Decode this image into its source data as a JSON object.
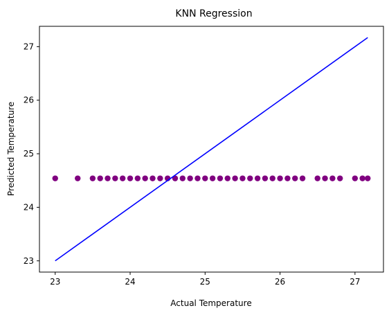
{
  "chart_data": {
    "type": "scatter",
    "title": "KNN Regression",
    "xlabel": "Actual Temperature",
    "ylabel": "Predicted Temperature",
    "xlim": [
      22.79,
      27.38
    ],
    "ylim": [
      22.79,
      27.38
    ],
    "xticks": [
      "23",
      "24",
      "25",
      "26",
      "27"
    ],
    "yticks": [
      "23",
      "24",
      "25",
      "26",
      "27"
    ],
    "grid": false,
    "legend": false,
    "series": [
      {
        "kind": "scatter",
        "color": "#800080",
        "x": [
          23.0,
          23.3,
          23.5,
          23.6,
          23.7,
          23.8,
          23.9,
          24.0,
          24.1,
          24.2,
          24.3,
          24.4,
          24.5,
          24.6,
          24.7,
          24.8,
          24.9,
          25.0,
          25.1,
          25.2,
          25.3,
          25.4,
          25.5,
          25.6,
          25.7,
          25.8,
          25.9,
          26.0,
          26.1,
          26.2,
          26.3,
          26.5,
          26.6,
          26.7,
          26.8,
          27.0,
          27.1,
          27.17
        ],
        "y": [
          24.54,
          24.54,
          24.54,
          24.54,
          24.54,
          24.54,
          24.54,
          24.54,
          24.54,
          24.54,
          24.54,
          24.54,
          24.54,
          24.54,
          24.54,
          24.54,
          24.54,
          24.54,
          24.54,
          24.54,
          24.54,
          24.54,
          24.54,
          24.54,
          24.54,
          24.54,
          24.54,
          24.54,
          24.54,
          24.54,
          24.54,
          24.54,
          24.54,
          24.54,
          24.54,
          24.54,
          24.54,
          24.54
        ]
      },
      {
        "kind": "line",
        "color": "#0000ff",
        "x": [
          23.0,
          27.17
        ],
        "y": [
          23.0,
          27.17
        ]
      }
    ]
  }
}
